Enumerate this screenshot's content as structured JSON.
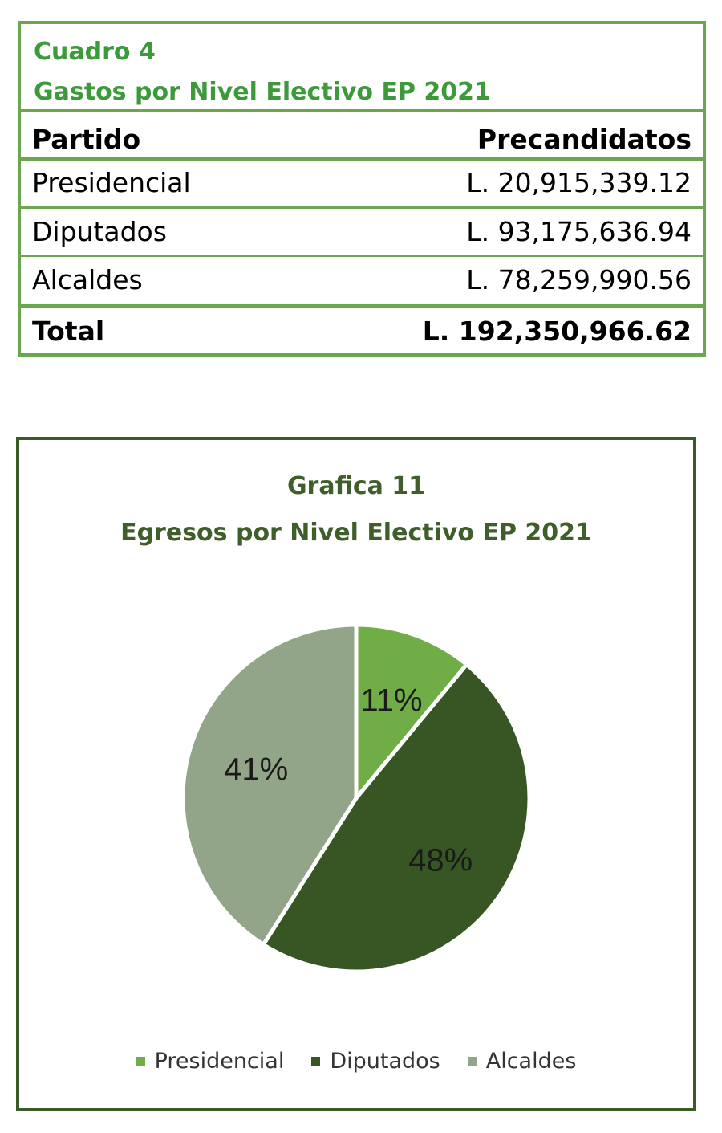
{
  "table": {
    "caption_line1": "Cuadro 4",
    "caption_line2": "Gastos por Nivel Electivo EP 2021",
    "header": {
      "col1": "Partido",
      "col2": "Precandidatos"
    },
    "rows": [
      {
        "label": "Presidencial",
        "value": "L. 20,915,339.12"
      },
      {
        "label": "Diputados",
        "value": "L. 93,175,636.94"
      },
      {
        "label": "Alcaldes",
        "value": "L. 78,259,990.56"
      }
    ],
    "total": {
      "label": "Total",
      "value": "L. 192,350,966.62"
    }
  },
  "chart_data": {
    "type": "pie",
    "title": "Grafica 11",
    "subtitle": "Egresos por Nivel Electivo EP 2021",
    "categories": [
      "Presidencial",
      "Diputados",
      "Alcaldes"
    ],
    "values": [
      11,
      48,
      41
    ],
    "data_labels": [
      "11%",
      "48%",
      "41%"
    ],
    "colors": [
      "#70ad47",
      "#375623",
      "#93a588"
    ],
    "legend_position": "bottom"
  }
}
